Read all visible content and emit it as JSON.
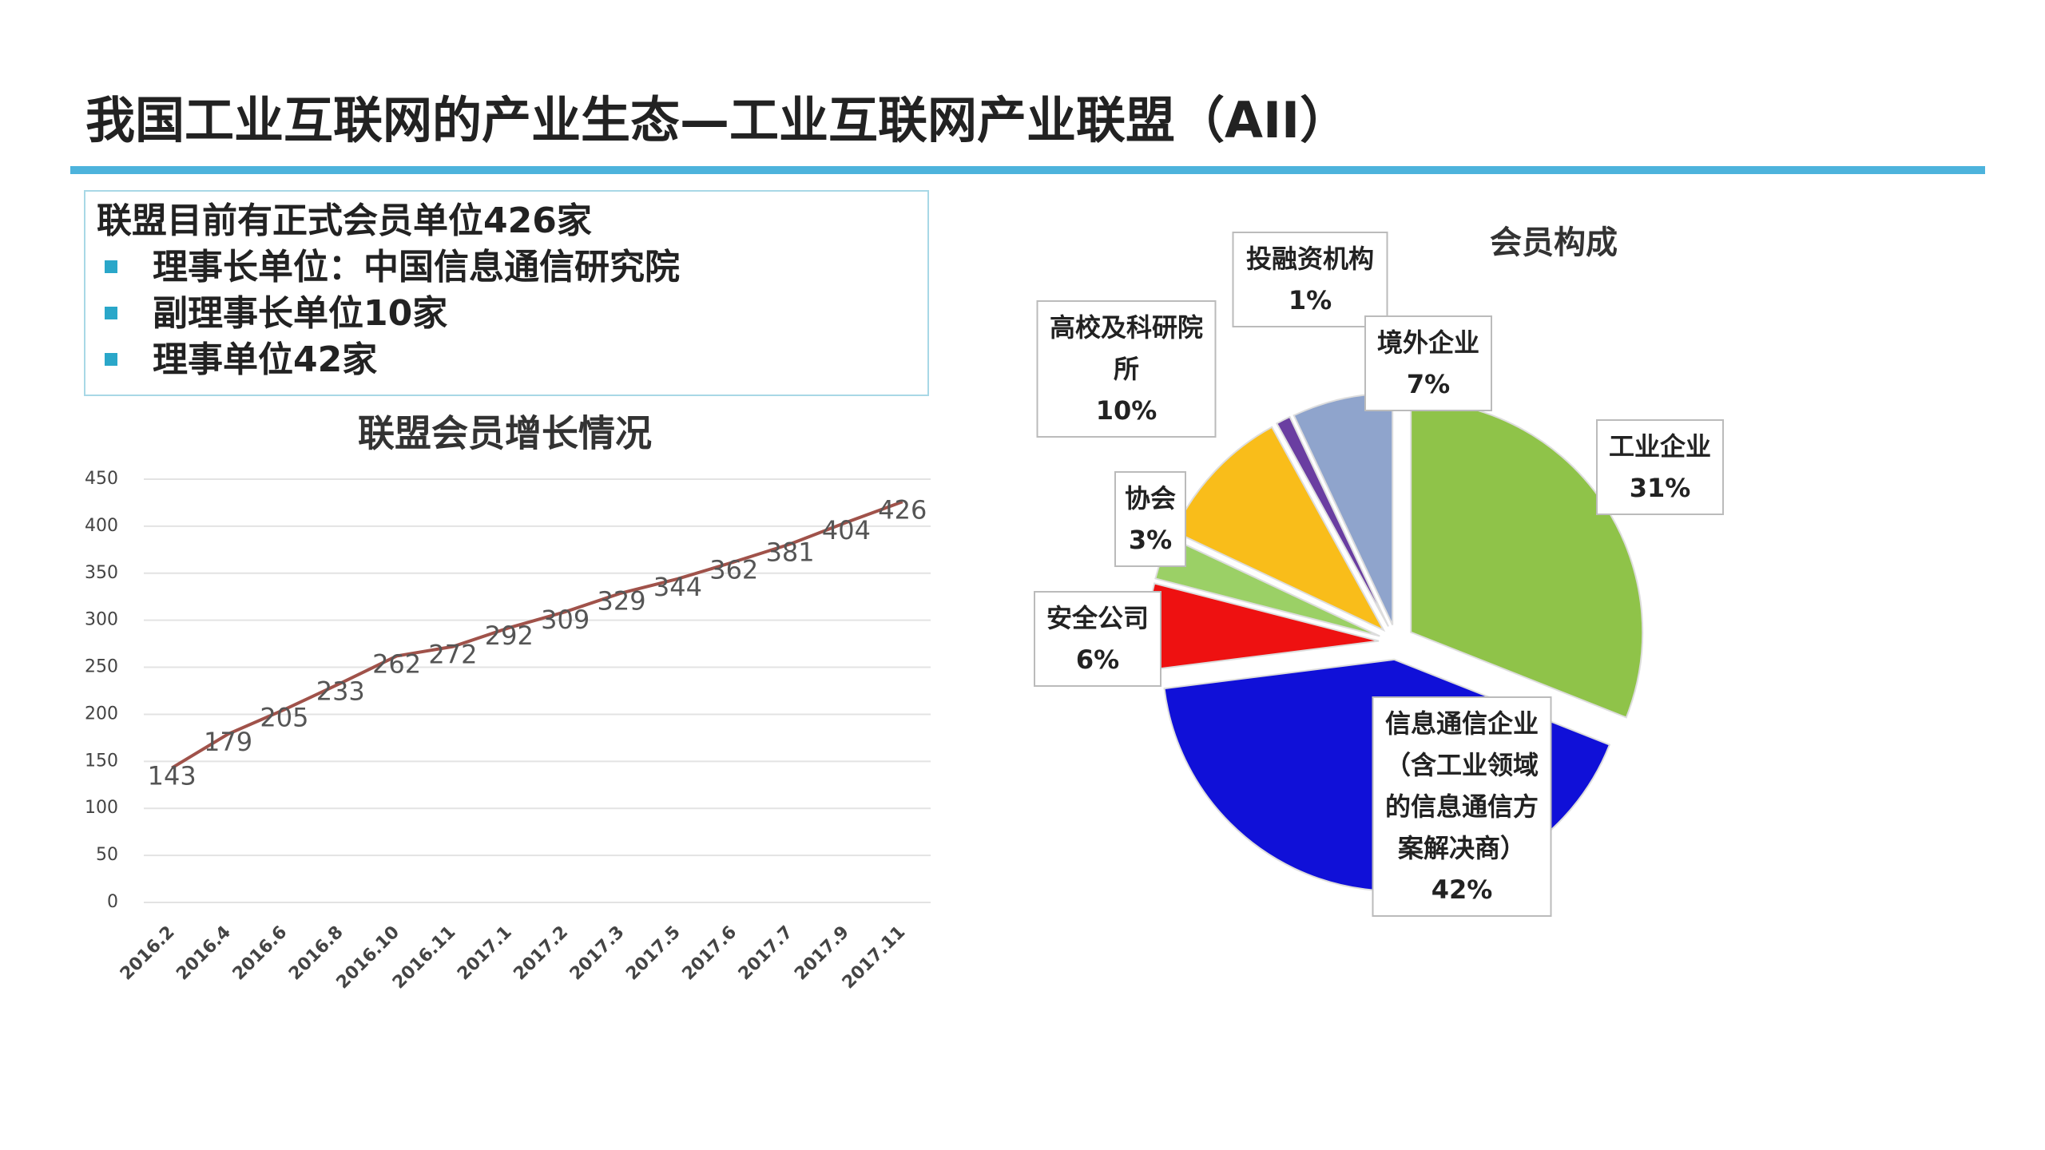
{
  "title": "我国工业互联网的产业生态—工业互联网产业联盟（AII）",
  "info_box": {
    "heading": "联盟目前有正式会员单位426家",
    "items": [
      "理事长单位：中国信息通信研究院",
      "副理事长单位10家",
      "理事单位42家"
    ]
  },
  "chart_data": [
    {
      "type": "line",
      "title": "联盟会员增长情况",
      "categories": [
        "2016.2",
        "2016.4",
        "2016.6",
        "2016.8",
        "2016.10",
        "2016.11",
        "2017.1",
        "2017.2",
        "2017.3",
        "2017.5",
        "2017.6",
        "2017.7",
        "2017.9",
        "2017.11"
      ],
      "values": [
        143,
        179,
        205,
        233,
        262,
        272,
        292,
        309,
        329,
        344,
        362,
        381,
        404,
        426
      ],
      "color": "#a0524a",
      "ylim": [
        0,
        450
      ],
      "yticks": [
        0,
        50,
        100,
        150,
        200,
        250,
        300,
        350,
        400,
        450
      ],
      "grid": true
    },
    {
      "type": "pie",
      "title": "会员构成",
      "categories": [
        "工业企业",
        "信息通信企业（含工业领域的信息通信方案解决商）",
        "安全公司",
        "协会",
        "高校及科研院所",
        "投融资机构",
        "境外企业"
      ],
      "values": [
        31,
        42,
        6,
        3,
        10,
        1,
        7
      ],
      "value_labels": [
        "31%",
        "42%",
        "6%",
        "3%",
        "10%",
        "1%",
        "7%"
      ],
      "colors": [
        "#8fc349",
        "#1010d8",
        "#ee1111",
        "#9bd066",
        "#f9bd1a",
        "#6a3ea1",
        "#8fa4cc"
      ]
    }
  ]
}
